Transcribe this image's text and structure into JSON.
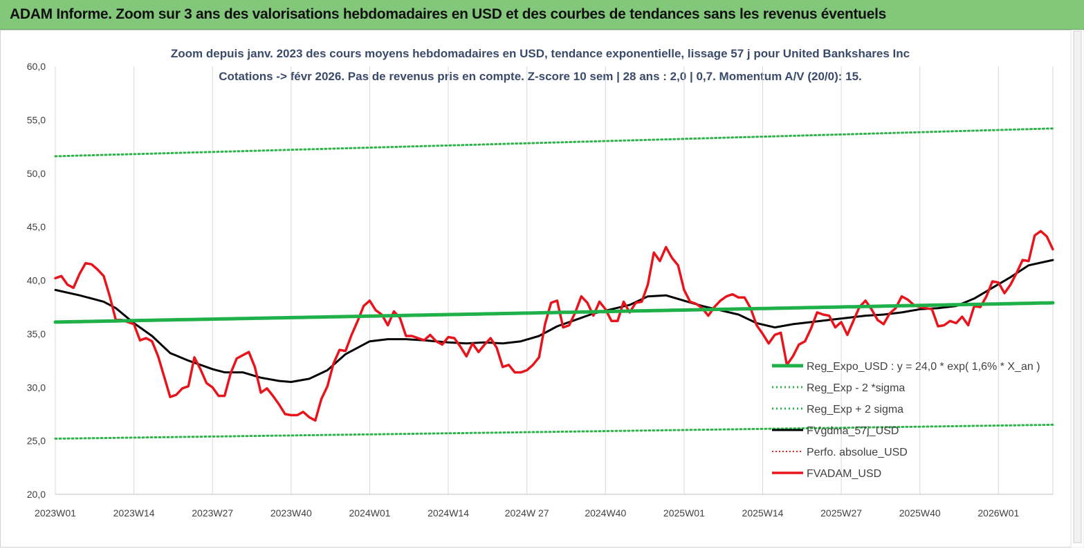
{
  "header": {
    "title": "ADAM Informe. Zoom sur 3 ans des valorisations hebdomadaires en USD et des courbes de tendances sans les revenus éventuels"
  },
  "colors": {
    "header_bg": "#82c77a",
    "reg_line": "#1fb04a",
    "sigma_dots": "#2db34a",
    "sma_line": "#000000",
    "perfo_dots": "#e02020",
    "price_line": "#e8141c",
    "grid": "#d9d9d9",
    "text": "#404040",
    "title_text": "#3a4a6a"
  },
  "chart_data": {
    "type": "line",
    "title_line1": "Zoom depuis janv. 2023 des cours moyens hebdomadaires en USD, tendance exponentielle, lissage 57 j pour United Bankshares Inc",
    "title_line2": "Cotations -> févr 2026.  Pas de revenus pris en compte. Z-score 10 sem  | 28 ans : 2,0  | 0,7. Momentum A/V (20/0): 15.",
    "y_ticks": [
      "20,0",
      "25,0",
      "30,0",
      "35,0",
      "40,0",
      "45,0",
      "50,0",
      "55,0",
      "60,0"
    ],
    "ylim": [
      20,
      60
    ],
    "x_ticks": [
      "2023W01",
      "2023W14",
      "2023W27",
      "2023W40",
      "2024W01",
      "2024W14",
      "2024W 27",
      "2024W40",
      "2025W01",
      "2025W14",
      "2025W27",
      "2025W40",
      "2026W01"
    ],
    "x_tick_week_index": [
      0,
      13,
      26,
      39,
      52,
      65,
      78,
      91,
      104,
      117,
      130,
      143,
      156
    ],
    "n_weeks": 166,
    "grid": "vertical",
    "legend": {
      "position": "right",
      "entries": [
        "Reg_Expo_USD : y = 24,0 * exp( 1,6% *  X_an )",
        "Reg_Exp - 2 *sigma",
        "Reg_Exp + 2 sigma",
        "FVgdma_57j_USD",
        "Perfo. absolue_USD",
        "FVADAM_USD"
      ]
    },
    "series": [
      {
        "name": "Reg_Expo_USD : y = 24,0 * exp( 1,6% *  X_an )",
        "style": "thick",
        "x": [
          0,
          165
        ],
        "values": [
          36.1,
          37.9
        ]
      },
      {
        "name": "Reg_Exp - 2 *sigma",
        "style": "dotted",
        "x": [
          0,
          165
        ],
        "values": [
          25.2,
          26.5
        ]
      },
      {
        "name": "Reg_Exp + 2 sigma",
        "style": "dotted",
        "x": [
          0,
          165
        ],
        "values": [
          51.6,
          54.2
        ]
      },
      {
        "name": "FVgdma_57j_USD",
        "style": "solid",
        "x": [
          0,
          4,
          8,
          10,
          13,
          16,
          19,
          22,
          26,
          28,
          31,
          34,
          37,
          39,
          42,
          45,
          48,
          52,
          55,
          58,
          61,
          65,
          68,
          71,
          74,
          77,
          80,
          83,
          86,
          89,
          92,
          95,
          98,
          101,
          104,
          107,
          110,
          113,
          116,
          119,
          122,
          125,
          128,
          131,
          134,
          137,
          140,
          143,
          146,
          149,
          152,
          155,
          158,
          161,
          165
        ],
        "values": [
          39.1,
          38.6,
          38.0,
          37.4,
          36.0,
          34.8,
          33.2,
          32.5,
          31.7,
          31.4,
          31.4,
          30.9,
          30.6,
          30.5,
          30.8,
          31.6,
          33.1,
          34.3,
          34.5,
          34.5,
          34.4,
          34.2,
          34.1,
          34.2,
          34.1,
          34.3,
          34.8,
          35.7,
          36.3,
          36.9,
          37.3,
          37.7,
          38.5,
          38.6,
          38.1,
          37.6,
          37.2,
          36.8,
          36.0,
          35.6,
          35.9,
          36.1,
          36.3,
          36.5,
          36.7,
          36.8,
          37.0,
          37.3,
          37.4,
          37.6,
          38.3,
          39.3,
          40.3,
          41.4,
          41.9
        ]
      },
      {
        "name": "Perfo. absolue_USD",
        "style": "dotted",
        "x": [],
        "values": []
      },
      {
        "name": "FVADAM_USD",
        "style": "thick",
        "x": [
          0,
          1,
          2,
          3,
          4,
          5,
          6,
          7,
          8,
          9,
          10,
          11,
          12,
          13,
          14,
          15,
          16,
          17,
          18,
          19,
          20,
          21,
          22,
          23,
          24,
          25,
          26,
          27,
          28,
          29,
          30,
          31,
          32,
          33,
          34,
          35,
          36,
          37,
          38,
          39,
          40,
          41,
          42,
          43,
          44,
          45,
          46,
          47,
          48,
          49,
          50,
          51,
          52,
          53,
          54,
          55,
          56,
          57,
          58,
          59,
          60,
          61,
          62,
          63,
          64,
          65,
          66,
          67,
          68,
          69,
          70,
          71,
          72,
          73,
          74,
          75,
          76,
          77,
          78,
          79,
          80,
          81,
          82,
          83,
          84,
          85,
          86,
          87,
          88,
          89,
          90,
          91,
          92,
          93,
          94,
          95,
          96,
          97,
          98,
          99,
          100,
          101,
          102,
          103,
          104,
          105,
          106,
          107,
          108,
          109,
          110,
          111,
          112,
          113,
          114,
          115,
          116,
          117,
          118,
          119,
          120,
          121,
          122,
          123,
          124,
          125,
          126,
          127,
          128,
          129,
          130,
          131,
          132,
          133,
          134,
          135,
          136,
          137,
          138,
          139,
          140,
          141,
          142,
          143,
          144,
          145,
          146,
          147,
          148,
          149,
          150,
          151,
          152,
          153,
          154,
          155,
          156,
          157,
          158,
          159,
          160,
          161,
          162,
          163,
          164,
          165
        ],
        "values": [
          40.2,
          40.4,
          39.6,
          39.3,
          40.6,
          41.6,
          41.5,
          41.0,
          40.4,
          38.5,
          36.3,
          36.3,
          36.1,
          35.9,
          34.4,
          34.6,
          34.3,
          32.9,
          31.0,
          29.1,
          29.3,
          29.9,
          30.1,
          32.8,
          31.7,
          30.4,
          30.0,
          29.2,
          29.2,
          31.3,
          32.7,
          33.0,
          33.3,
          31.9,
          29.5,
          29.9,
          29.2,
          28.4,
          27.5,
          27.4,
          27.4,
          27.7,
          27.2,
          26.9,
          28.9,
          30.1,
          32.2,
          33.5,
          33.4,
          34.9,
          36.2,
          37.6,
          38.1,
          37.2,
          36.8,
          35.8,
          37.1,
          36.5,
          34.8,
          34.8,
          34.6,
          34.4,
          34.9,
          34.3,
          34.0,
          34.7,
          34.6,
          33.8,
          32.9,
          34.1,
          33.3,
          34.0,
          34.6,
          33.7,
          31.9,
          32.1,
          31.4,
          31.4,
          31.6,
          32.1,
          32.8,
          35.9,
          37.9,
          38.1,
          35.6,
          35.8,
          37.0,
          38.5,
          37.9,
          36.7,
          38.0,
          37.3,
          36.2,
          36.2,
          38.0,
          37.0,
          37.9,
          38.0,
          39.6,
          42.6,
          41.8,
          43.1,
          42.1,
          41.4,
          39.1,
          38.0,
          37.8,
          37.4,
          36.7,
          37.5,
          38.1,
          38.5,
          38.7,
          38.4,
          38.4,
          37.4,
          35.8,
          35.0,
          34.1,
          34.9,
          35.1,
          32.1,
          32.9,
          34.0,
          34.3,
          35.5,
          37.0,
          36.8,
          36.7,
          35.6,
          36.1,
          34.9,
          36.2,
          37.5,
          38.1,
          37.3,
          36.3,
          35.9,
          36.9,
          37.4,
          38.5,
          38.2,
          37.7,
          37.5,
          37.4,
          37.3,
          35.7,
          35.8,
          36.2,
          36.0,
          36.6,
          35.8,
          37.6,
          37.5,
          38.5,
          39.9,
          39.8,
          38.8,
          39.6,
          40.7,
          41.9,
          41.8,
          44.2,
          44.6,
          44.1,
          42.9
        ]
      }
    ]
  }
}
